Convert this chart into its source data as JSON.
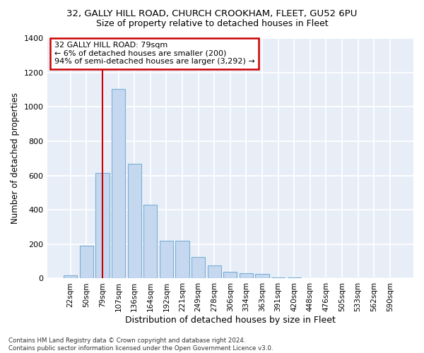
{
  "title1": "32, GALLY HILL ROAD, CHURCH CROOKHAM, FLEET, GU52 6PU",
  "title2": "Size of property relative to detached houses in Fleet",
  "xlabel": "Distribution of detached houses by size in Fleet",
  "ylabel": "Number of detached properties",
  "categories": [
    "22sqm",
    "50sqm",
    "79sqm",
    "107sqm",
    "136sqm",
    "164sqm",
    "192sqm",
    "221sqm",
    "249sqm",
    "278sqm",
    "306sqm",
    "334sqm",
    "363sqm",
    "391sqm",
    "420sqm",
    "448sqm",
    "476sqm",
    "505sqm",
    "533sqm",
    "562sqm",
    "590sqm"
  ],
  "bar_values": [
    18,
    193,
    615,
    1105,
    670,
    430,
    220,
    220,
    125,
    75,
    40,
    30,
    25,
    5,
    5,
    3,
    3,
    2,
    2,
    1,
    1
  ],
  "bar_color": "#c5d8f0",
  "bar_edge_color": "#7bafd4",
  "vline_x": 2,
  "vline_color": "#cc0000",
  "annotation_text": "32 GALLY HILL ROAD: 79sqm\n← 6% of detached houses are smaller (200)\n94% of semi-detached houses are larger (3,292) →",
  "annotation_box_color": "#cc0000",
  "background_color": "#e8eef8",
  "ylim": [
    0,
    1400
  ],
  "yticks": [
    0,
    200,
    400,
    600,
    800,
    1000,
    1200,
    1400
  ],
  "footer": "Contains HM Land Registry data © Crown copyright and database right 2024.\nContains public sector information licensed under the Open Government Licence v3.0."
}
